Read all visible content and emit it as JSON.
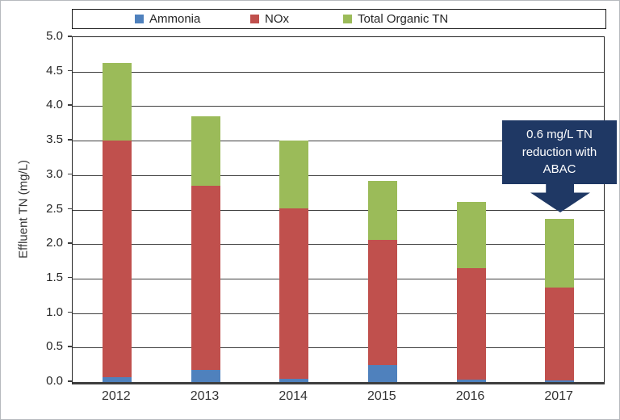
{
  "chart_data": {
    "type": "bar",
    "stacked": true,
    "title": "",
    "xlabel": "",
    "ylabel": "Effluent TN (mg/L)",
    "ylim": [
      0,
      5
    ],
    "ytick_step": 0.5,
    "yticks": [
      "0.0",
      "0.5",
      "1.0",
      "1.5",
      "2.0",
      "2.5",
      "3.0",
      "3.5",
      "4.0",
      "4.5",
      "5.0"
    ],
    "grid": true,
    "legend_position": "top",
    "categories": [
      "2012",
      "2013",
      "2014",
      "2015",
      "2016",
      "2017"
    ],
    "series": [
      {
        "name": "Ammonia",
        "color": "#4f81bd",
        "values": [
          0.07,
          0.17,
          0.05,
          0.25,
          0.04,
          0.02
        ]
      },
      {
        "name": "NOx",
        "color": "#c0504d",
        "values": [
          3.43,
          2.68,
          2.47,
          1.81,
          1.61,
          1.35
        ]
      },
      {
        "name": "Total Organic TN",
        "color": "#9bbb59",
        "values": [
          1.13,
          1.0,
          0.98,
          0.86,
          0.96,
          1.0
        ]
      }
    ],
    "stack_totals": [
      4.63,
      3.85,
      3.5,
      2.92,
      2.61,
      2.37
    ]
  },
  "annotation": {
    "lines": [
      "0.6 mg/L TN",
      "reduction with",
      "ABAC"
    ],
    "bg_color": "#1f3864",
    "text_color": "#ffffff",
    "target_category": "2017"
  },
  "colors": {
    "ammonia": "#4f81bd",
    "nox": "#c0504d",
    "total_organic_tn": "#9bbb59",
    "annotation_navy": "#1f3864",
    "gridline": "#3f3f3f",
    "axis_text": "#333333"
  }
}
